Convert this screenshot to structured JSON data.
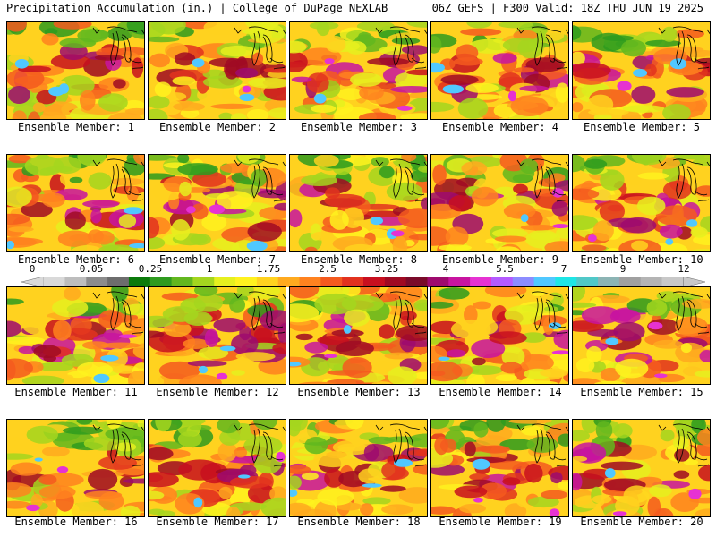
{
  "header": {
    "title": "Precipitation Accumulation (in.) | College of DuPage NEXLAB",
    "run_info": "06Z GEFS | F300 Valid: 18Z THU JUN 19 2025"
  },
  "colorbar": {
    "tick_labels": [
      "0",
      "0.05",
      "0.25",
      "1",
      "1.75",
      "2.5",
      "3.25",
      "4",
      "5.5",
      "7",
      "9",
      "12"
    ],
    "colors": [
      "#d9d9d9",
      "#bdbdbd",
      "#8c8c8c",
      "#6d6d6d",
      "#0b7a0b",
      "#2e9b1f",
      "#62b71f",
      "#a4d61f",
      "#e6f01f",
      "#fff21f",
      "#ffd21f",
      "#ffaa1f",
      "#ff821f",
      "#f45a1f",
      "#e2321f",
      "#c80f1f",
      "#a00a23",
      "#7a0a2a",
      "#9e0a6e",
      "#c814a0",
      "#e632d2",
      "#b45aff",
      "#8c8cff",
      "#50c8ff",
      "#1ee6e6",
      "#50c8c8",
      "#8cb4b4",
      "#a0a0a0",
      "#b4b4b4",
      "#c8c8c8"
    ]
  },
  "panels": [
    {
      "label": "Ensemble Member: 1",
      "seed": 11
    },
    {
      "label": "Ensemble Member: 2",
      "seed": 23
    },
    {
      "label": "Ensemble Member: 3",
      "seed": 37
    },
    {
      "label": "Ensemble Member: 4",
      "seed": 41
    },
    {
      "label": "Ensemble Member: 5",
      "seed": 53
    },
    {
      "label": "Ensemble Member: 6",
      "seed": 67
    },
    {
      "label": "Ensemble Member: 7",
      "seed": 71
    },
    {
      "label": "Ensemble Member: 8",
      "seed": 89
    },
    {
      "label": "Ensemble Member: 9",
      "seed": 97
    },
    {
      "label": "Ensemble Member: 10",
      "seed": 103
    },
    {
      "label": "Ensemble Member: 11",
      "seed": 113
    },
    {
      "label": "Ensemble Member: 12",
      "seed": 127
    },
    {
      "label": "Ensemble Member: 13",
      "seed": 131
    },
    {
      "label": "Ensemble Member: 14",
      "seed": 149
    },
    {
      "label": "Ensemble Member: 15",
      "seed": 151
    },
    {
      "label": "Ensemble Member: 16",
      "seed": 163
    },
    {
      "label": "Ensemble Member: 17",
      "seed": 173
    },
    {
      "label": "Ensemble Member: 18",
      "seed": 181
    },
    {
      "label": "Ensemble Member: 19",
      "seed": 191
    },
    {
      "label": "Ensemble Member: 20",
      "seed": 199
    }
  ]
}
